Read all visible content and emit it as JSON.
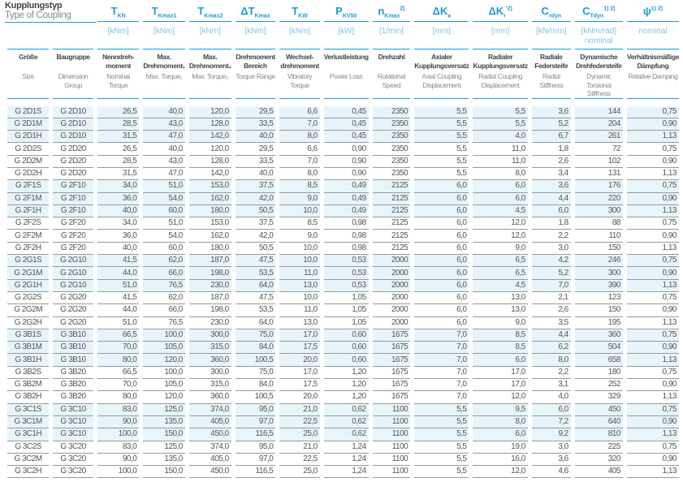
{
  "title": {
    "de": "Kupplungstyp",
    "en": "Type of Coupling"
  },
  "colors": {
    "accent": "#1b9ad6",
    "row_shade": "#e7f5fb"
  },
  "columns": [
    {
      "sym": "",
      "sub": "",
      "sup": "",
      "unit": "",
      "de": "Größe",
      "en": "Size"
    },
    {
      "sym": "",
      "sub": "",
      "sup": "",
      "unit": "",
      "de": "Baugruppe",
      "en": "Dimension Group"
    },
    {
      "sym": "T",
      "sub": "KN",
      "sup": "",
      "unit": "[kNm]",
      "de": "Nenndreh-moment",
      "en": "Nominal Torque"
    },
    {
      "sym": "T",
      "sub": "Kmax1",
      "sup": "",
      "unit": "[kNm]",
      "de": "Max. Drehmoment₁",
      "en": "Max. Torque₁"
    },
    {
      "sym": "T",
      "sub": "Kmax2",
      "sup": "",
      "unit": "[kNm]",
      "de": "Max. Drehmoment₂",
      "en": "Max. Torque₂"
    },
    {
      "sym": "ΔT",
      "sub": "Kmax",
      "sup": "",
      "unit": "[kNm]",
      "de": "Drehmoment Bereich",
      "en": "Torque Range"
    },
    {
      "sym": "T",
      "sub": "KW",
      "sup": "",
      "unit": "[kNm]",
      "de": "Wechsel-drehmoment",
      "en": "Vibratory Torque"
    },
    {
      "sym": "P",
      "sub": "KV50",
      "sup": "",
      "unit": "[kW]",
      "de": "Verlustleistung",
      "en": "Power Loss"
    },
    {
      "sym": "n",
      "sub": "Kmax",
      "sup": "2)",
      "unit": "[1/min]",
      "de": "Drehzahl",
      "en": "Rotational Speed"
    },
    {
      "sym": "ΔK",
      "sub": "a",
      "sup": "",
      "unit": "[mm]",
      "de": "Axialer Kupplungsversatz",
      "en": "Axial Coupling Displacement"
    },
    {
      "sym": "ΔK",
      "sub": "r",
      "sup": "'2)",
      "unit": "[mm]",
      "de": "Radialer Kupplungsversatz",
      "en": "Radial Coupling Displacement"
    },
    {
      "sym": "C",
      "sub": "rdyn",
      "sup": "",
      "unit": "[kN/mm]",
      "de": "Radiale Federsteife",
      "en": "Radial Stiffness"
    },
    {
      "sym": "C",
      "sub": "Tdyn",
      "sup": "1) 2)",
      "unit": "[kNm/rad] nominal",
      "de": "Dynamische Drehfedersteife",
      "en": "Dynamic Torsional Stiffness"
    },
    {
      "sym": "ψ",
      "sub": "",
      "sup": "1) 2)",
      "unit": "nominal",
      "de": "Verhältnismäßige Dämpfung",
      "en": "Relative Damping"
    }
  ],
  "rows": [
    [
      "G 2D1S",
      "G 2D10",
      "26,5",
      "40,0",
      "120,0",
      "29,5",
      "6,6",
      "0,45",
      "2350",
      "5,5",
      "5,5",
      "3,6",
      "144",
      "0,75"
    ],
    [
      "G 2D1M",
      "G 2D10",
      "28,5",
      "43,0",
      "128,0",
      "33,5",
      "7,0",
      "0,45",
      "2350",
      "5,5",
      "5,5",
      "5,2",
      "204",
      "0,90"
    ],
    [
      "G 2D1H",
      "G 2D10",
      "31,5",
      "47,0",
      "142,0",
      "40,0",
      "8,0",
      "0,45",
      "2350",
      "5,5",
      "4,0",
      "6,7",
      "261",
      "1,13"
    ],
    [
      "G 2D2S",
      "G 2D20",
      "26,5",
      "40,0",
      "120,0",
      "29,5",
      "6,6",
      "0,90",
      "2350",
      "5,5",
      "11,0",
      "1,8",
      "72",
      "0,75"
    ],
    [
      "G 2D2M",
      "G 2D20",
      "28,5",
      "43,0",
      "128,0",
      "33,5",
      "7,0",
      "0,90",
      "2350",
      "5,5",
      "11,0",
      "2,6",
      "102",
      "0,90"
    ],
    [
      "G 2D2H",
      "G 2D20",
      "31,5",
      "47,0",
      "142,0",
      "40,0",
      "8,0",
      "0,90",
      "2350",
      "5,5",
      "8,0",
      "3,4",
      "131",
      "1,13"
    ],
    [
      "G 2F1S",
      "G 2F10",
      "34,0",
      "51,0",
      "153,0",
      "37,5",
      "8,5",
      "0,49",
      "2125",
      "6,0",
      "6,0",
      "3,6",
      "176",
      "0,75"
    ],
    [
      "G 2F1M",
      "G 2F10",
      "36,0",
      "54,0",
      "162,0",
      "42,0",
      "9,0",
      "0,49",
      "2125",
      "6,0",
      "6,0",
      "4,4",
      "220",
      "0,90"
    ],
    [
      "G 2F1H",
      "G 2F10",
      "40,0",
      "60,0",
      "180,0",
      "50,5",
      "10,0",
      "0,49",
      "2125",
      "6,0",
      "4,5",
      "6,0",
      "300",
      "1,13"
    ],
    [
      "G 2F2S",
      "G 2F20",
      "34,0",
      "51,0",
      "153,0",
      "37,5",
      "8,5",
      "0,98",
      "2125",
      "6,0",
      "12,0",
      "1,8",
      "88",
      "0,75"
    ],
    [
      "G 2F2M",
      "G 2F20",
      "36,0",
      "54,0",
      "162,0",
      "42,0",
      "9,0",
      "0,98",
      "2125",
      "6,0",
      "12,0",
      "2,2",
      "110",
      "0,90"
    ],
    [
      "G 2F2H",
      "G 2F20",
      "40,0",
      "60,0",
      "180,0",
      "50,5",
      "10,0",
      "0,98",
      "2125",
      "6,0",
      "9,0",
      "3,0",
      "150",
      "1,13"
    ],
    [
      "G 2G1S",
      "G 2G10",
      "41,5",
      "62,0",
      "187,0",
      "47,5",
      "10,0",
      "0,53",
      "2000",
      "6,0",
      "6,5",
      "4,2",
      "246",
      "0,75"
    ],
    [
      "G 2G1M",
      "G 2G10",
      "44,0",
      "66,0",
      "198,0",
      "53,5",
      "11,0",
      "0,53",
      "2000",
      "6,0",
      "6,5",
      "5,2",
      "300",
      "0,90"
    ],
    [
      "G 2G1H",
      "G 2G10",
      "51,0",
      "76,5",
      "230,0",
      "64,0",
      "13,0",
      "0,53",
      "2000",
      "6,0",
      "4,5",
      "7,0",
      "390",
      "1,13"
    ],
    [
      "G 2G2S",
      "G 2G20",
      "41,5",
      "62,0",
      "187,0",
      "47,5",
      "10,0",
      "1,05",
      "2000",
      "6,0",
      "13,0",
      "2,1",
      "123",
      "0,75"
    ],
    [
      "G 2G2M",
      "G 2G20",
      "44,0",
      "66,0",
      "198,0",
      "53,5",
      "11,0",
      "1,05",
      "2000",
      "6,0",
      "13,0",
      "2,6",
      "150",
      "0,90"
    ],
    [
      "G 2G2H",
      "G 2G20",
      "51,0",
      "76,5",
      "230,0",
      "64,0",
      "13,0",
      "1,05",
      "2000",
      "6,0",
      "9,0",
      "3,5",
      "195",
      "1,13"
    ],
    [
      "G 3B1S",
      "G 3B10",
      "66,5",
      "100,0",
      "300,0",
      "75,0",
      "17,0",
      "0,60",
      "1675",
      "7,0",
      "8,5",
      "4,4",
      "360",
      "0,75"
    ],
    [
      "G 3B1M",
      "G 3B10",
      "70,0",
      "105,0",
      "315,0",
      "84,0",
      "17,5",
      "0,60",
      "1675",
      "7,0",
      "8,5",
      "6,2",
      "504",
      "0,90"
    ],
    [
      "G 3B1H",
      "G 3B10",
      "80,0",
      "120,0",
      "360,0",
      "100,5",
      "20,0",
      "0,60",
      "1675",
      "7,0",
      "6,0",
      "8,0",
      "658",
      "1,13"
    ],
    [
      "G 3B2S",
      "G 3B20",
      "66,5",
      "100,0",
      "300,0",
      "75,0",
      "17,0",
      "1,20",
      "1675",
      "7,0",
      "17,0",
      "2,2",
      "180",
      "0,75"
    ],
    [
      "G 3B2M",
      "G 3B20",
      "70,0",
      "105,0",
      "315,0",
      "84,0",
      "17,5",
      "1,20",
      "1675",
      "7,0",
      "17,0",
      "3,1",
      "252",
      "0,90"
    ],
    [
      "G 3B2H",
      "G 3B20",
      "80,0",
      "120,0",
      "360,0",
      "100,5",
      "20,0",
      "1,20",
      "1675",
      "7,0",
      "12,0",
      "4,0",
      "329",
      "1,13"
    ],
    [
      "G 3C1S",
      "G 3C10",
      "83,0",
      "125,0",
      "374,0",
      "95,0",
      "21,0",
      "0,62",
      "1100",
      "5,5",
      "9,5",
      "6,0",
      "450",
      "0,75"
    ],
    [
      "G 3C1M",
      "G 3C10",
      "90,0",
      "135,0",
      "405,0",
      "97,0",
      "22,5",
      "0,62",
      "1100",
      "5,5",
      "8,0",
      "7,2",
      "640",
      "0,90"
    ],
    [
      "G 3C1H",
      "G 3C10",
      "100,0",
      "150,0",
      "450,0",
      "116,5",
      "25,0",
      "0,62",
      "1100",
      "5,5",
      "6,0",
      "9,2",
      "810",
      "1,13"
    ],
    [
      "G 3C2S",
      "G 3C20",
      "83,0",
      "125,0",
      "374,0",
      "95,0",
      "21,0",
      "1,24",
      "1100",
      "5,5",
      "19,0",
      "3,0",
      "225",
      "0,75"
    ],
    [
      "G 3C2M",
      "G 3C20",
      "90,0",
      "135,0",
      "405,0",
      "97,0",
      "22,5",
      "1,24",
      "1100",
      "5,5",
      "16,0",
      "3,6",
      "320",
      "0,90"
    ],
    [
      "G 3C2H",
      "G 3C20",
      "100,0",
      "150,0",
      "450,0",
      "116,5",
      "25,0",
      "1,24",
      "1100",
      "5,5",
      "12,0",
      "4,6",
      "405",
      "1,13"
    ]
  ]
}
